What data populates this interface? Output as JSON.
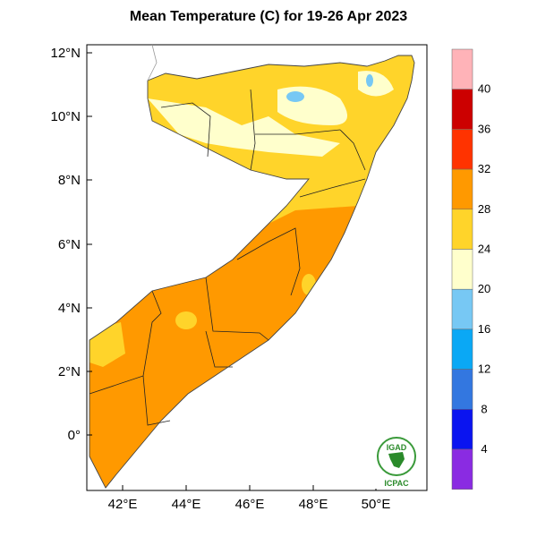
{
  "title": "Mean Temperature (C) for 19-26 Apr 2023",
  "map": {
    "region": "Somalia",
    "lat_ticks": [
      "12°N",
      "10°N",
      "8°N",
      "6°N",
      "4°N",
      "2°N",
      "0°"
    ],
    "lon_ticks": [
      "42°E",
      "44°E",
      "46°E",
      "48°E",
      "50°E"
    ]
  },
  "colorbar": {
    "labels": [
      "40",
      "36",
      "32",
      "28",
      "24",
      "20",
      "16",
      "12",
      "8",
      "4"
    ],
    "colors": [
      "#ffb3b8",
      "#cc0000",
      "#ff3300",
      "#ff9900",
      "#ffd42a",
      "#ffffcc",
      "#77c8f4",
      "#0aa8f5",
      "#3377e0",
      "#0a14f0",
      "#8a2be2"
    ]
  },
  "logo": {
    "top": "IGAD",
    "bottom": "ICPAC"
  }
}
